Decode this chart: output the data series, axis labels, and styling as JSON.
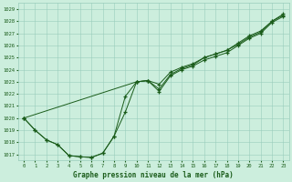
{
  "title": "Graphe pression niveau de la mer (hPa)",
  "bg_color": "#cceedd",
  "grid_color": "#99ccbb",
  "line_color": "#1a5c1a",
  "xlim": [
    -0.5,
    23.5
  ],
  "ylim": [
    1016.5,
    1029.5
  ],
  "yticks": [
    1017,
    1018,
    1019,
    1020,
    1021,
    1022,
    1023,
    1024,
    1025,
    1026,
    1027,
    1028,
    1029
  ],
  "xticks": [
    0,
    1,
    2,
    3,
    4,
    5,
    6,
    7,
    8,
    9,
    10,
    11,
    12,
    13,
    14,
    15,
    16,
    17,
    18,
    19,
    20,
    21,
    22,
    23
  ],
  "series": [
    {
      "x": [
        0,
        1,
        2,
        3,
        4,
        5,
        6,
        7,
        8,
        9,
        10,
        11,
        12,
        13,
        14,
        15,
        16,
        17,
        18,
        19,
        20,
        21,
        22,
        23
      ],
      "y": [
        1020.0,
        1019.0,
        1018.2,
        1017.8,
        1016.9,
        1016.8,
        1016.75,
        1017.1,
        1018.5,
        1020.5,
        1023.0,
        1023.1,
        1022.2,
        1023.5,
        1024.0,
        1024.3,
        1024.8,
        1025.1,
        1025.4,
        1026.0,
        1026.6,
        1027.0,
        1027.9,
        1028.4
      ]
    },
    {
      "x": [
        0,
        1,
        2,
        3,
        4,
        5,
        6,
        7,
        8,
        9,
        10,
        11,
        12,
        13,
        14,
        15,
        16,
        17,
        18,
        19,
        20,
        21,
        22,
        23
      ],
      "y": [
        1020.0,
        1019.0,
        1018.2,
        1017.8,
        1016.9,
        1016.8,
        1016.75,
        1017.1,
        1018.5,
        1021.8,
        1023.0,
        1023.1,
        1022.8,
        1023.8,
        1024.2,
        1024.5,
        1025.0,
        1025.3,
        1025.6,
        1026.2,
        1026.8,
        1027.2,
        1028.0,
        1028.6
      ]
    },
    {
      "x": [
        0,
        10,
        11,
        12,
        13,
        14,
        15,
        16,
        17,
        18,
        19,
        20,
        21,
        22,
        23
      ],
      "y": [
        1020.0,
        1023.0,
        1023.1,
        1022.4,
        1023.6,
        1024.1,
        1024.4,
        1025.0,
        1025.3,
        1025.6,
        1026.1,
        1026.7,
        1027.1,
        1028.0,
        1028.5
      ]
    }
  ]
}
